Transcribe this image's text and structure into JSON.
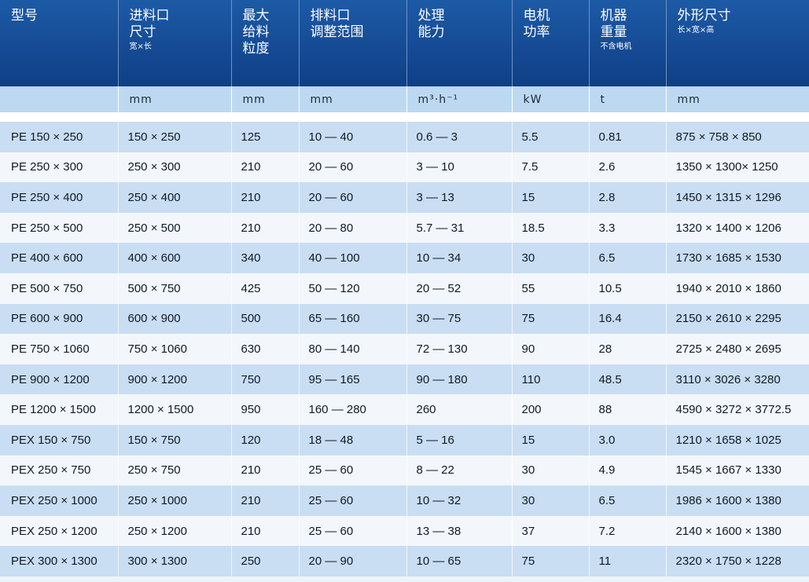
{
  "headers": [
    {
      "lines": [
        "型号"
      ],
      "sub": ""
    },
    {
      "lines": [
        "进料口",
        "尺寸"
      ],
      "sub": "宽×长"
    },
    {
      "lines": [
        "最大",
        "给料",
        "粒度"
      ],
      "sub": ""
    },
    {
      "lines": [
        "排料口",
        "调整范围"
      ],
      "sub": ""
    },
    {
      "lines": [
        "处理",
        "能力"
      ],
      "sub": ""
    },
    {
      "lines": [
        "电机",
        "功率"
      ],
      "sub": ""
    },
    {
      "lines": [
        "机器",
        "重量"
      ],
      "sub": "不含电机"
    },
    {
      "lines": [
        "外形尺寸"
      ],
      "sub": "长×宽×高"
    }
  ],
  "units": [
    "",
    "mm",
    "mm",
    "mm",
    "m³·h⁻¹",
    "kW",
    "t",
    "mm"
  ],
  "rows": [
    [
      "PE 150 × 250",
      "150 × 250",
      "125",
      "10 — 40",
      "0.6 — 3",
      "5.5",
      "0.81",
      "875 × 758 × 850"
    ],
    [
      "PE 250 × 300",
      "250 × 300",
      "210",
      "20 — 60",
      "3 — 10",
      "7.5",
      "2.6",
      "1350 × 1300× 1250"
    ],
    [
      "PE 250 × 400",
      "250 × 400",
      "210",
      "20 — 60",
      "3 — 13",
      "15",
      "2.8",
      "1450 × 1315 × 1296"
    ],
    [
      "PE 250 × 500",
      "250 × 500",
      "210",
      "20 — 80",
      "5.7 — 31",
      "18.5",
      "3.3",
      "1320 × 1400 × 1206"
    ],
    [
      "PE 400 × 600",
      "400 × 600",
      "340",
      "40 — 100",
      "10 — 34",
      "30",
      "6.5",
      "1730 × 1685 × 1530"
    ],
    [
      "PE 500 × 750",
      "500 × 750",
      "425",
      "50 — 120",
      "20 — 52",
      "55",
      "10.5",
      "1940 × 2010 × 1860"
    ],
    [
      "PE 600 × 900",
      "600 × 900",
      "500",
      "65 — 160",
      "30 — 75",
      "75",
      "16.4",
      "2150 × 2610 × 2295"
    ],
    [
      "PE 750 × 1060",
      "750 × 1060",
      "630",
      "80 — 140",
      "72 — 130",
      "90",
      "28",
      "2725 × 2480 × 2695"
    ],
    [
      "PE 900 × 1200",
      "900 × 1200",
      "750",
      "95 — 165",
      "90 — 180",
      "110",
      "48.5",
      "3110 × 3026 × 3280"
    ],
    [
      "PE 1200 × 1500",
      "1200 × 1500",
      "950",
      "160 — 280",
      "260",
      "200",
      "88",
      "4590 × 3272 × 3772.5"
    ],
    [
      "PEX 150 × 750",
      "150 × 750",
      "120",
      "18 — 48",
      "5 — 16",
      "15",
      "3.0",
      "1210 × 1658 × 1025"
    ],
    [
      "PEX 250 × 750",
      "250 × 750",
      "210",
      "25 — 60",
      "8 — 22",
      "30",
      "4.9",
      "1545 × 1667 × 1330"
    ],
    [
      "PEX 250 × 1000",
      "250 × 1000",
      "210",
      "25 — 60",
      "10 — 32",
      "30",
      "6.5",
      "1986 × 1600 × 1380"
    ],
    [
      "PEX 250 × 1200",
      "250 × 1200",
      "210",
      "25 — 60",
      "13 — 38",
      "37",
      "7.2",
      "2140 × 1600 × 1380"
    ],
    [
      "PEX 300 × 1300",
      "300 × 1300",
      "250",
      "20 — 90",
      "10 — 65",
      "75",
      "11",
      "2320 × 1750 × 1228"
    ]
  ]
}
